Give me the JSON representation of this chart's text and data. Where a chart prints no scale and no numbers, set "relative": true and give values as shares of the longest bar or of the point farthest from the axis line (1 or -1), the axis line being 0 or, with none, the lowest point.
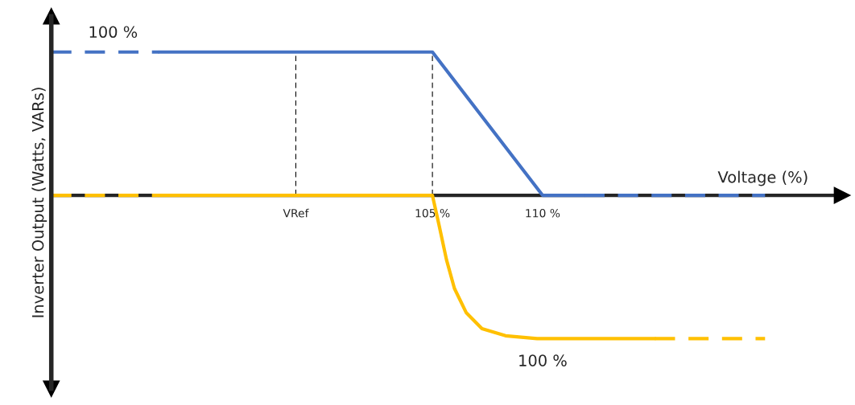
{
  "chart_data": {
    "type": "line",
    "relative": true,
    "xlabel": "Voltage (%)",
    "ylabel": "Inverter Output (Watts, VARs)",
    "xlim": [
      87.7,
      123.6
    ],
    "xticks": [
      {
        "value": 98.8,
        "label": "VRef"
      },
      {
        "value": 105,
        "label": "105 %"
      },
      {
        "value": 110,
        "label": "110 %"
      }
    ],
    "series": [
      {
        "color": "#4472c4",
        "line_style": "dashed",
        "x": [
          87.7,
          92.6
        ],
        "values": [
          1,
          1
        ]
      },
      {
        "color": "#4472c4",
        "line_style": "solid",
        "x": [
          92.6,
          105,
          110,
          111.9
        ],
        "values": [
          1,
          1,
          0,
          0
        ]
      },
      {
        "color": "#4472c4",
        "line_style": "dashed",
        "x": [
          111.9,
          120.1
        ],
        "values": [
          0,
          0
        ]
      },
      {
        "color": "#ffc000",
        "line_style": "dashed",
        "x": [
          87.7,
          92.6
        ],
        "values": [
          0,
          0
        ]
      },
      {
        "color": "#ffc000",
        "line_style": "solid",
        "x": [
          92.6,
          105,
          105.29,
          105.64,
          106,
          106.54,
          107.25,
          108.32,
          109.75,
          115.1
        ],
        "values": [
          0,
          0,
          -0.2,
          -0.45,
          -0.65,
          -0.82,
          -0.93,
          -0.98,
          -1,
          -1
        ]
      },
      {
        "color": "#ffc000",
        "line_style": "dashed",
        "x": [
          115.1,
          120.1
        ],
        "values": [
          -1,
          -1
        ]
      }
    ],
    "ref_lines": [
      {
        "axis": "x",
        "value": 98.8,
        "line_style": "dashed",
        "color": "#000000"
      },
      {
        "axis": "x",
        "value": 105,
        "line_style": "dashed",
        "color": "#000000"
      }
    ],
    "annotations": [
      {
        "text": "100 %",
        "x": 90.5,
        "y": 1
      },
      {
        "text": "100 %",
        "x": 110,
        "y": -1
      }
    ],
    "grid": false,
    "legend": false
  }
}
